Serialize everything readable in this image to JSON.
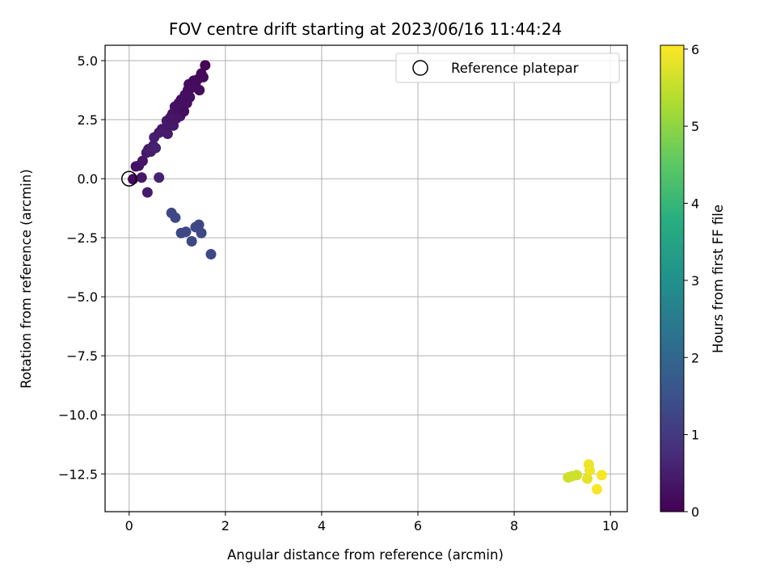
{
  "chart_data": {
    "type": "scatter",
    "title": "FOV centre drift starting at 2023/06/16 11:44:24",
    "xlabel": "Angular distance from reference (arcmin)",
    "ylabel": "Rotation from reference (arcmin)",
    "xlim": [
      -0.5,
      10.35
    ],
    "ylim": [
      -14.1,
      5.65
    ],
    "xticks": [
      0,
      2,
      4,
      6,
      8,
      10
    ],
    "xtick_labels": [
      "0",
      "2",
      "4",
      "6",
      "8",
      "10"
    ],
    "yticks": [
      5.0,
      2.5,
      0.0,
      -2.5,
      -5.0,
      -7.5,
      -10.0,
      -12.5
    ],
    "ytick_labels": [
      "5.0",
      "2.5",
      "0.0",
      "−2.5",
      "−5.0",
      "−7.5",
      "−10.0",
      "−12.5"
    ],
    "grid": true,
    "legend": {
      "placement": "top-right",
      "entries": [
        "Reference platepar"
      ]
    },
    "reference_point": {
      "x": 0,
      "y": 0,
      "label": "Reference platepar"
    },
    "colorbar": {
      "label": "Hours from first FF file",
      "colormap": "viridis",
      "range": [
        0,
        6.05
      ],
      "ticks": [
        0,
        1,
        2,
        3,
        4,
        5,
        6
      ],
      "tick_labels": [
        "0",
        "1",
        "2",
        "3",
        "4",
        "5",
        "6"
      ]
    },
    "points": [
      {
        "x": 0.08,
        "y": -0.02,
        "c": 0.15
      },
      {
        "x": 0.14,
        "y": 0.52,
        "c": 0.25
      },
      {
        "x": 0.2,
        "y": 0.55,
        "c": 0.3
      },
      {
        "x": 0.26,
        "y": 0.05,
        "c": 0.4
      },
      {
        "x": 0.28,
        "y": 0.75,
        "c": 0.35
      },
      {
        "x": 0.36,
        "y": 1.1,
        "c": 0.4
      },
      {
        "x": 0.38,
        "y": -0.58,
        "c": 0.45
      },
      {
        "x": 0.4,
        "y": 1.25,
        "c": 0.45
      },
      {
        "x": 0.45,
        "y": 1.15,
        "c": 0.5
      },
      {
        "x": 0.5,
        "y": 1.4,
        "c": 0.5
      },
      {
        "x": 0.52,
        "y": 1.75,
        "c": 0.5
      },
      {
        "x": 0.55,
        "y": 1.3,
        "c": 0.55
      },
      {
        "x": 0.62,
        "y": 0.05,
        "c": 0.55
      },
      {
        "x": 0.62,
        "y": 1.95,
        "c": 0.45
      },
      {
        "x": 0.68,
        "y": 2.1,
        "c": 0.4
      },
      {
        "x": 0.72,
        "y": 2.0,
        "c": 0.45
      },
      {
        "x": 0.78,
        "y": 2.45,
        "c": 0.4
      },
      {
        "x": 0.8,
        "y": 1.9,
        "c": 0.45
      },
      {
        "x": 0.84,
        "y": 2.3,
        "c": 0.4
      },
      {
        "x": 0.86,
        "y": 2.6,
        "c": 0.35
      },
      {
        "x": 0.9,
        "y": 2.75,
        "c": 0.35
      },
      {
        "x": 0.92,
        "y": 2.25,
        "c": 0.4
      },
      {
        "x": 0.95,
        "y": 3.05,
        "c": 0.3
      },
      {
        "x": 0.98,
        "y": 2.55,
        "c": 0.35
      },
      {
        "x": 1.0,
        "y": 2.9,
        "c": 0.3
      },
      {
        "x": 1.03,
        "y": 3.2,
        "c": 0.3
      },
      {
        "x": 1.06,
        "y": 2.65,
        "c": 0.35
      },
      {
        "x": 1.08,
        "y": 3.35,
        "c": 0.25
      },
      {
        "x": 1.12,
        "y": 3.0,
        "c": 0.3
      },
      {
        "x": 1.14,
        "y": 2.85,
        "c": 0.2
      },
      {
        "x": 1.16,
        "y": 3.55,
        "c": 0.25
      },
      {
        "x": 1.2,
        "y": 3.2,
        "c": 0.25
      },
      {
        "x": 1.22,
        "y": 3.75,
        "c": 0.2
      },
      {
        "x": 1.24,
        "y": 4.0,
        "c": 0.2
      },
      {
        "x": 1.26,
        "y": 3.45,
        "c": 0.25
      },
      {
        "x": 1.3,
        "y": 3.85,
        "c": 0.2
      },
      {
        "x": 1.34,
        "y": 4.15,
        "c": 0.15
      },
      {
        "x": 1.38,
        "y": 3.95,
        "c": 0.2
      },
      {
        "x": 1.42,
        "y": 4.2,
        "c": 0.15
      },
      {
        "x": 1.46,
        "y": 3.75,
        "c": 0.2
      },
      {
        "x": 1.5,
        "y": 4.45,
        "c": 0.1
      },
      {
        "x": 1.54,
        "y": 4.3,
        "c": 0.15
      },
      {
        "x": 1.58,
        "y": 4.8,
        "c": 0.05
      },
      {
        "x": 0.88,
        "y": -1.45,
        "c": 1.3
      },
      {
        "x": 0.96,
        "y": -1.65,
        "c": 1.3
      },
      {
        "x": 1.08,
        "y": -2.3,
        "c": 1.3
      },
      {
        "x": 1.18,
        "y": -2.25,
        "c": 1.3
      },
      {
        "x": 1.3,
        "y": -2.65,
        "c": 1.3
      },
      {
        "x": 1.38,
        "y": -2.05,
        "c": 1.3
      },
      {
        "x": 1.45,
        "y": -1.95,
        "c": 1.3
      },
      {
        "x": 1.5,
        "y": -2.3,
        "c": 1.3
      },
      {
        "x": 1.7,
        "y": -3.2,
        "c": 1.3
      },
      {
        "x": 9.12,
        "y": -12.65,
        "c": 5.6
      },
      {
        "x": 9.2,
        "y": -12.6,
        "c": 5.6
      },
      {
        "x": 9.3,
        "y": -12.55,
        "c": 5.6
      },
      {
        "x": 9.52,
        "y": -12.7,
        "c": 5.8
      },
      {
        "x": 9.55,
        "y": -12.1,
        "c": 5.9
      },
      {
        "x": 9.57,
        "y": -12.35,
        "c": 5.9
      },
      {
        "x": 9.72,
        "y": -13.15,
        "c": 6.0
      },
      {
        "x": 9.82,
        "y": -12.55,
        "c": 6.0
      }
    ]
  }
}
